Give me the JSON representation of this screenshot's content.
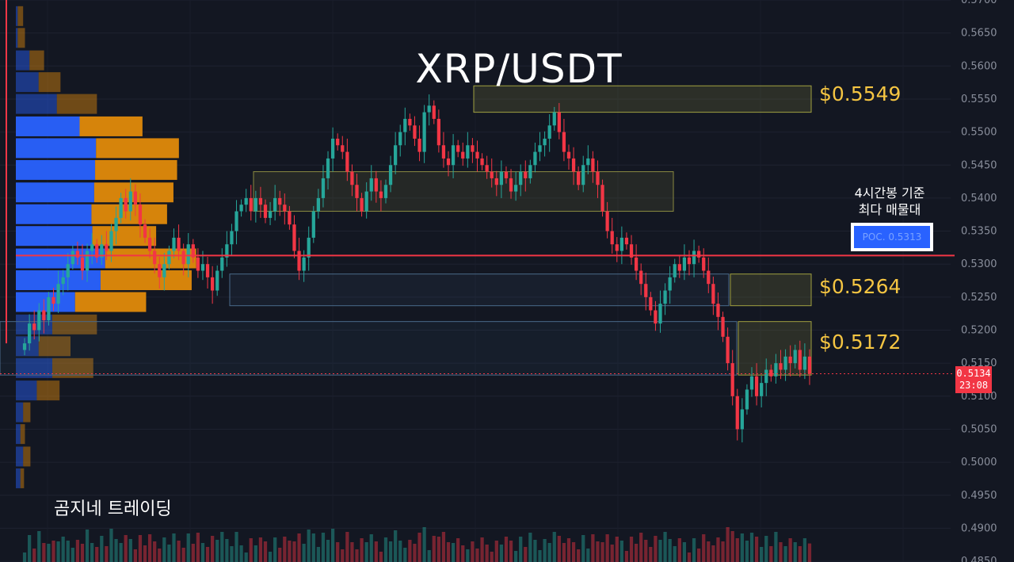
{
  "title": "XRP/USDT",
  "brand": "곰지네 트레이딩",
  "poc": {
    "caption_line1": "4시간봉 기준",
    "caption_line2": "최다 매물대",
    "label": "POC. 0.5313"
  },
  "levels": [
    {
      "label": "$0.5549",
      "low": 0.553,
      "high": 0.557
    },
    {
      "label": "$0.5264",
      "low": 0.5237,
      "high": 0.5285
    },
    {
      "label": "$0.5172",
      "low": 0.5132,
      "high": 0.5213
    }
  ],
  "current_price": {
    "value": "0.5134",
    "countdown": "23:08"
  },
  "colors": {
    "background": "#131722",
    "up": "#26a69a",
    "down": "#f23645",
    "vp_blue": "#2962ff",
    "vp_orange": "#e08a0b",
    "level_text": "#f5c542",
    "poc_line": "#f23645"
  },
  "chart_data": {
    "type": "candlestick",
    "symbol": "XRP/USDT",
    "y_ticks": [
      "0.4850",
      "0.4900",
      "0.4950",
      "0.5000",
      "0.5050",
      "0.5100",
      "0.5150",
      "0.5200",
      "0.5250",
      "0.5300",
      "0.5350",
      "0.5400",
      "0.5450",
      "0.5500",
      "0.5550",
      "0.5600",
      "0.5650",
      "0.5700"
    ],
    "ylim": [
      0.485,
      0.57
    ],
    "poc_price": 0.5313,
    "last_price": 0.5134,
    "close_path": [
      0.518,
      0.521,
      0.52,
      0.523,
      0.5215,
      0.525,
      0.524,
      0.527,
      0.528,
      0.53,
      0.532,
      0.531,
      0.529,
      0.532,
      0.533,
      0.531,
      0.533,
      0.532,
      0.535,
      0.537,
      0.54,
      0.538,
      0.541,
      0.539,
      0.536,
      0.534,
      0.532,
      0.53,
      0.528,
      0.53,
      0.532,
      0.534,
      0.532,
      0.53,
      0.533,
      0.531,
      0.529,
      0.53,
      0.528,
      0.526,
      0.529,
      0.531,
      0.533,
      0.535,
      0.538,
      0.539,
      0.54,
      0.538,
      0.54,
      0.539,
      0.537,
      0.538,
      0.54,
      0.539,
      0.538,
      0.536,
      0.532,
      0.529,
      0.531,
      0.534,
      0.538,
      0.54,
      0.543,
      0.546,
      0.549,
      0.548,
      0.547,
      0.544,
      0.542,
      0.54,
      0.538,
      0.541,
      0.543,
      0.541,
      0.54,
      0.542,
      0.545,
      0.548,
      0.55,
      0.552,
      0.551,
      0.549,
      0.547,
      0.553,
      0.554,
      0.552,
      0.548,
      0.546,
      0.545,
      0.548,
      0.547,
      0.546,
      0.548,
      0.547,
      0.546,
      0.545,
      0.544,
      0.543,
      0.542,
      0.544,
      0.543,
      0.541,
      0.542,
      0.544,
      0.543,
      0.545,
      0.547,
      0.548,
      0.549,
      0.551,
      0.553,
      0.55,
      0.547,
      0.546,
      0.544,
      0.542,
      0.545,
      0.546,
      0.544,
      0.542,
      0.538,
      0.535,
      0.533,
      0.532,
      0.534,
      0.533,
      0.531,
      0.529,
      0.527,
      0.525,
      0.523,
      0.521,
      0.524,
      0.526,
      0.528,
      0.53,
      0.529,
      0.531,
      0.53,
      0.532,
      0.531,
      0.529,
      0.527,
      0.524,
      0.522,
      0.519,
      0.515,
      0.51,
      0.505,
      0.508,
      0.511,
      0.513,
      0.51,
      0.512,
      0.514,
      0.513,
      0.515,
      0.514,
      0.516,
      0.515,
      0.517,
      0.514,
      0.516,
      0.5134
    ],
    "volume_profile": [
      {
        "price": 0.5675,
        "up": 0.2,
        "down": 0.6
      },
      {
        "price": 0.5642,
        "up": 0.2,
        "down": 0.8
      },
      {
        "price": 0.5608,
        "up": 1.5,
        "down": 1.6
      },
      {
        "price": 0.5575,
        "up": 2.5,
        "down": 2.4
      },
      {
        "price": 0.5542,
        "up": 4.5,
        "down": 4.4
      },
      {
        "price": 0.5508,
        "up": 7.0,
        "down": 6.9
      },
      {
        "price": 0.5475,
        "up": 8.8,
        "down": 9.1
      },
      {
        "price": 0.5442,
        "up": 8.7,
        "down": 9.0
      },
      {
        "price": 0.5408,
        "up": 8.6,
        "down": 8.7
      },
      {
        "price": 0.5375,
        "up": 8.3,
        "down": 8.3
      },
      {
        "price": 0.5342,
        "up": 8.4,
        "down": 7.0
      },
      {
        "price": 0.5308,
        "up": 9.8,
        "down": 10.0
      },
      {
        "price": 0.5275,
        "up": 9.3,
        "down": 10.0
      },
      {
        "price": 0.5242,
        "up": 6.5,
        "down": 7.8
      },
      {
        "price": 0.5208,
        "up": 4.0,
        "down": 4.9
      },
      {
        "price": 0.5175,
        "up": 2.5,
        "down": 3.5
      },
      {
        "price": 0.5142,
        "up": 4.0,
        "down": 4.5
      },
      {
        "price": 0.5108,
        "up": 2.3,
        "down": 2.5
      },
      {
        "price": 0.5075,
        "up": 0.8,
        "down": 0.8
      },
      {
        "price": 0.5042,
        "up": 0.5,
        "down": 0.5
      },
      {
        "price": 0.5008,
        "up": 0.8,
        "down": 0.8
      },
      {
        "price": 0.4975,
        "up": 0.5,
        "down": 0.4
      }
    ]
  }
}
